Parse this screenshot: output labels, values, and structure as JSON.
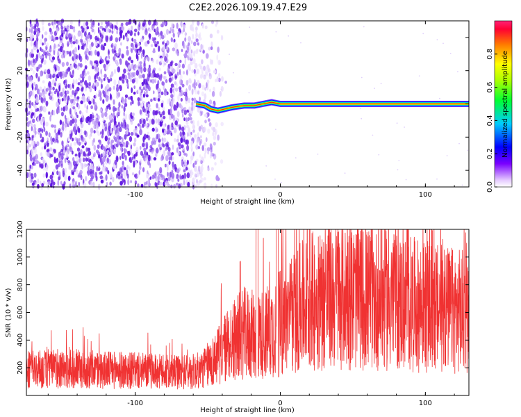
{
  "chart_data": [
    {
      "type": "heatmap",
      "title": "C2E2.2026.109.19.47.E29",
      "xlabel": "Height of straight line (km)",
      "ylabel": "Frequency (Hz)",
      "xlim": [
        -175,
        130
      ],
      "ylim": [
        -50,
        50
      ],
      "xticks": [
        -100,
        0,
        100
      ],
      "yticks": [
        -40,
        -20,
        0,
        20,
        40
      ],
      "colorbar": {
        "label": "Normalized spectral amplitude",
        "range": [
          0,
          1
        ],
        "ticks": [
          0.0,
          0.2,
          0.4,
          0.6,
          0.8
        ],
        "tick_labels": [
          "0.0",
          "0.2",
          "0.4",
          "0.6",
          "0.8"
        ]
      },
      "features": {
        "noise_region_x": [
          -175,
          -48
        ],
        "carrier_track": [
          {
            "x": -58,
            "y": 0
          },
          {
            "x": -52,
            "y": -1
          },
          {
            "x": -48,
            "y": -3
          },
          {
            "x": -43,
            "y": -4
          },
          {
            "x": -38,
            "y": -3
          },
          {
            "x": -33,
            "y": -2
          },
          {
            "x": -25,
            "y": -1
          },
          {
            "x": -18,
            "y": -1
          },
          {
            "x": -12,
            "y": 0
          },
          {
            "x": -6,
            "y": 1
          },
          {
            "x": 0,
            "y": 0
          },
          {
            "x": 130,
            "y": 0
          }
        ],
        "carrier_peak_amplitude": 0.9
      }
    },
    {
      "type": "line",
      "title": "",
      "xlabel": "Height of straight line (km)",
      "ylabel": "SNR (10 * v/v)",
      "xlim": [
        -175,
        130
      ],
      "ylim": [
        0,
        1200
      ],
      "xticks": [
        -100,
        0,
        100
      ],
      "yticks": [
        200,
        400,
        600,
        800,
        1000,
        1200
      ],
      "series_color": "#f03232",
      "profile": [
        {
          "x": -175,
          "mean": 185
        },
        {
          "x": -150,
          "mean": 190
        },
        {
          "x": -120,
          "mean": 185
        },
        {
          "x": -90,
          "mean": 175
        },
        {
          "x": -70,
          "mean": 165
        },
        {
          "x": -55,
          "mean": 180
        },
        {
          "x": -45,
          "mean": 260
        },
        {
          "x": -35,
          "mean": 380
        },
        {
          "x": -25,
          "mean": 450
        },
        {
          "x": -15,
          "mean": 430
        },
        {
          "x": -5,
          "mean": 480
        },
        {
          "x": 5,
          "mean": 560
        },
        {
          "x": 20,
          "mean": 680
        },
        {
          "x": 40,
          "mean": 720
        },
        {
          "x": 60,
          "mean": 700
        },
        {
          "x": 80,
          "mean": 680
        },
        {
          "x": 100,
          "mean": 640
        },
        {
          "x": 130,
          "mean": 600
        }
      ],
      "spikes": [
        {
          "x": -16,
          "value": 1200
        },
        {
          "x": -2,
          "value": 1200
        }
      ]
    }
  ],
  "colors": {
    "axis": "#000000",
    "snr_line": "#f03232",
    "noise": "#6a1fe0"
  }
}
